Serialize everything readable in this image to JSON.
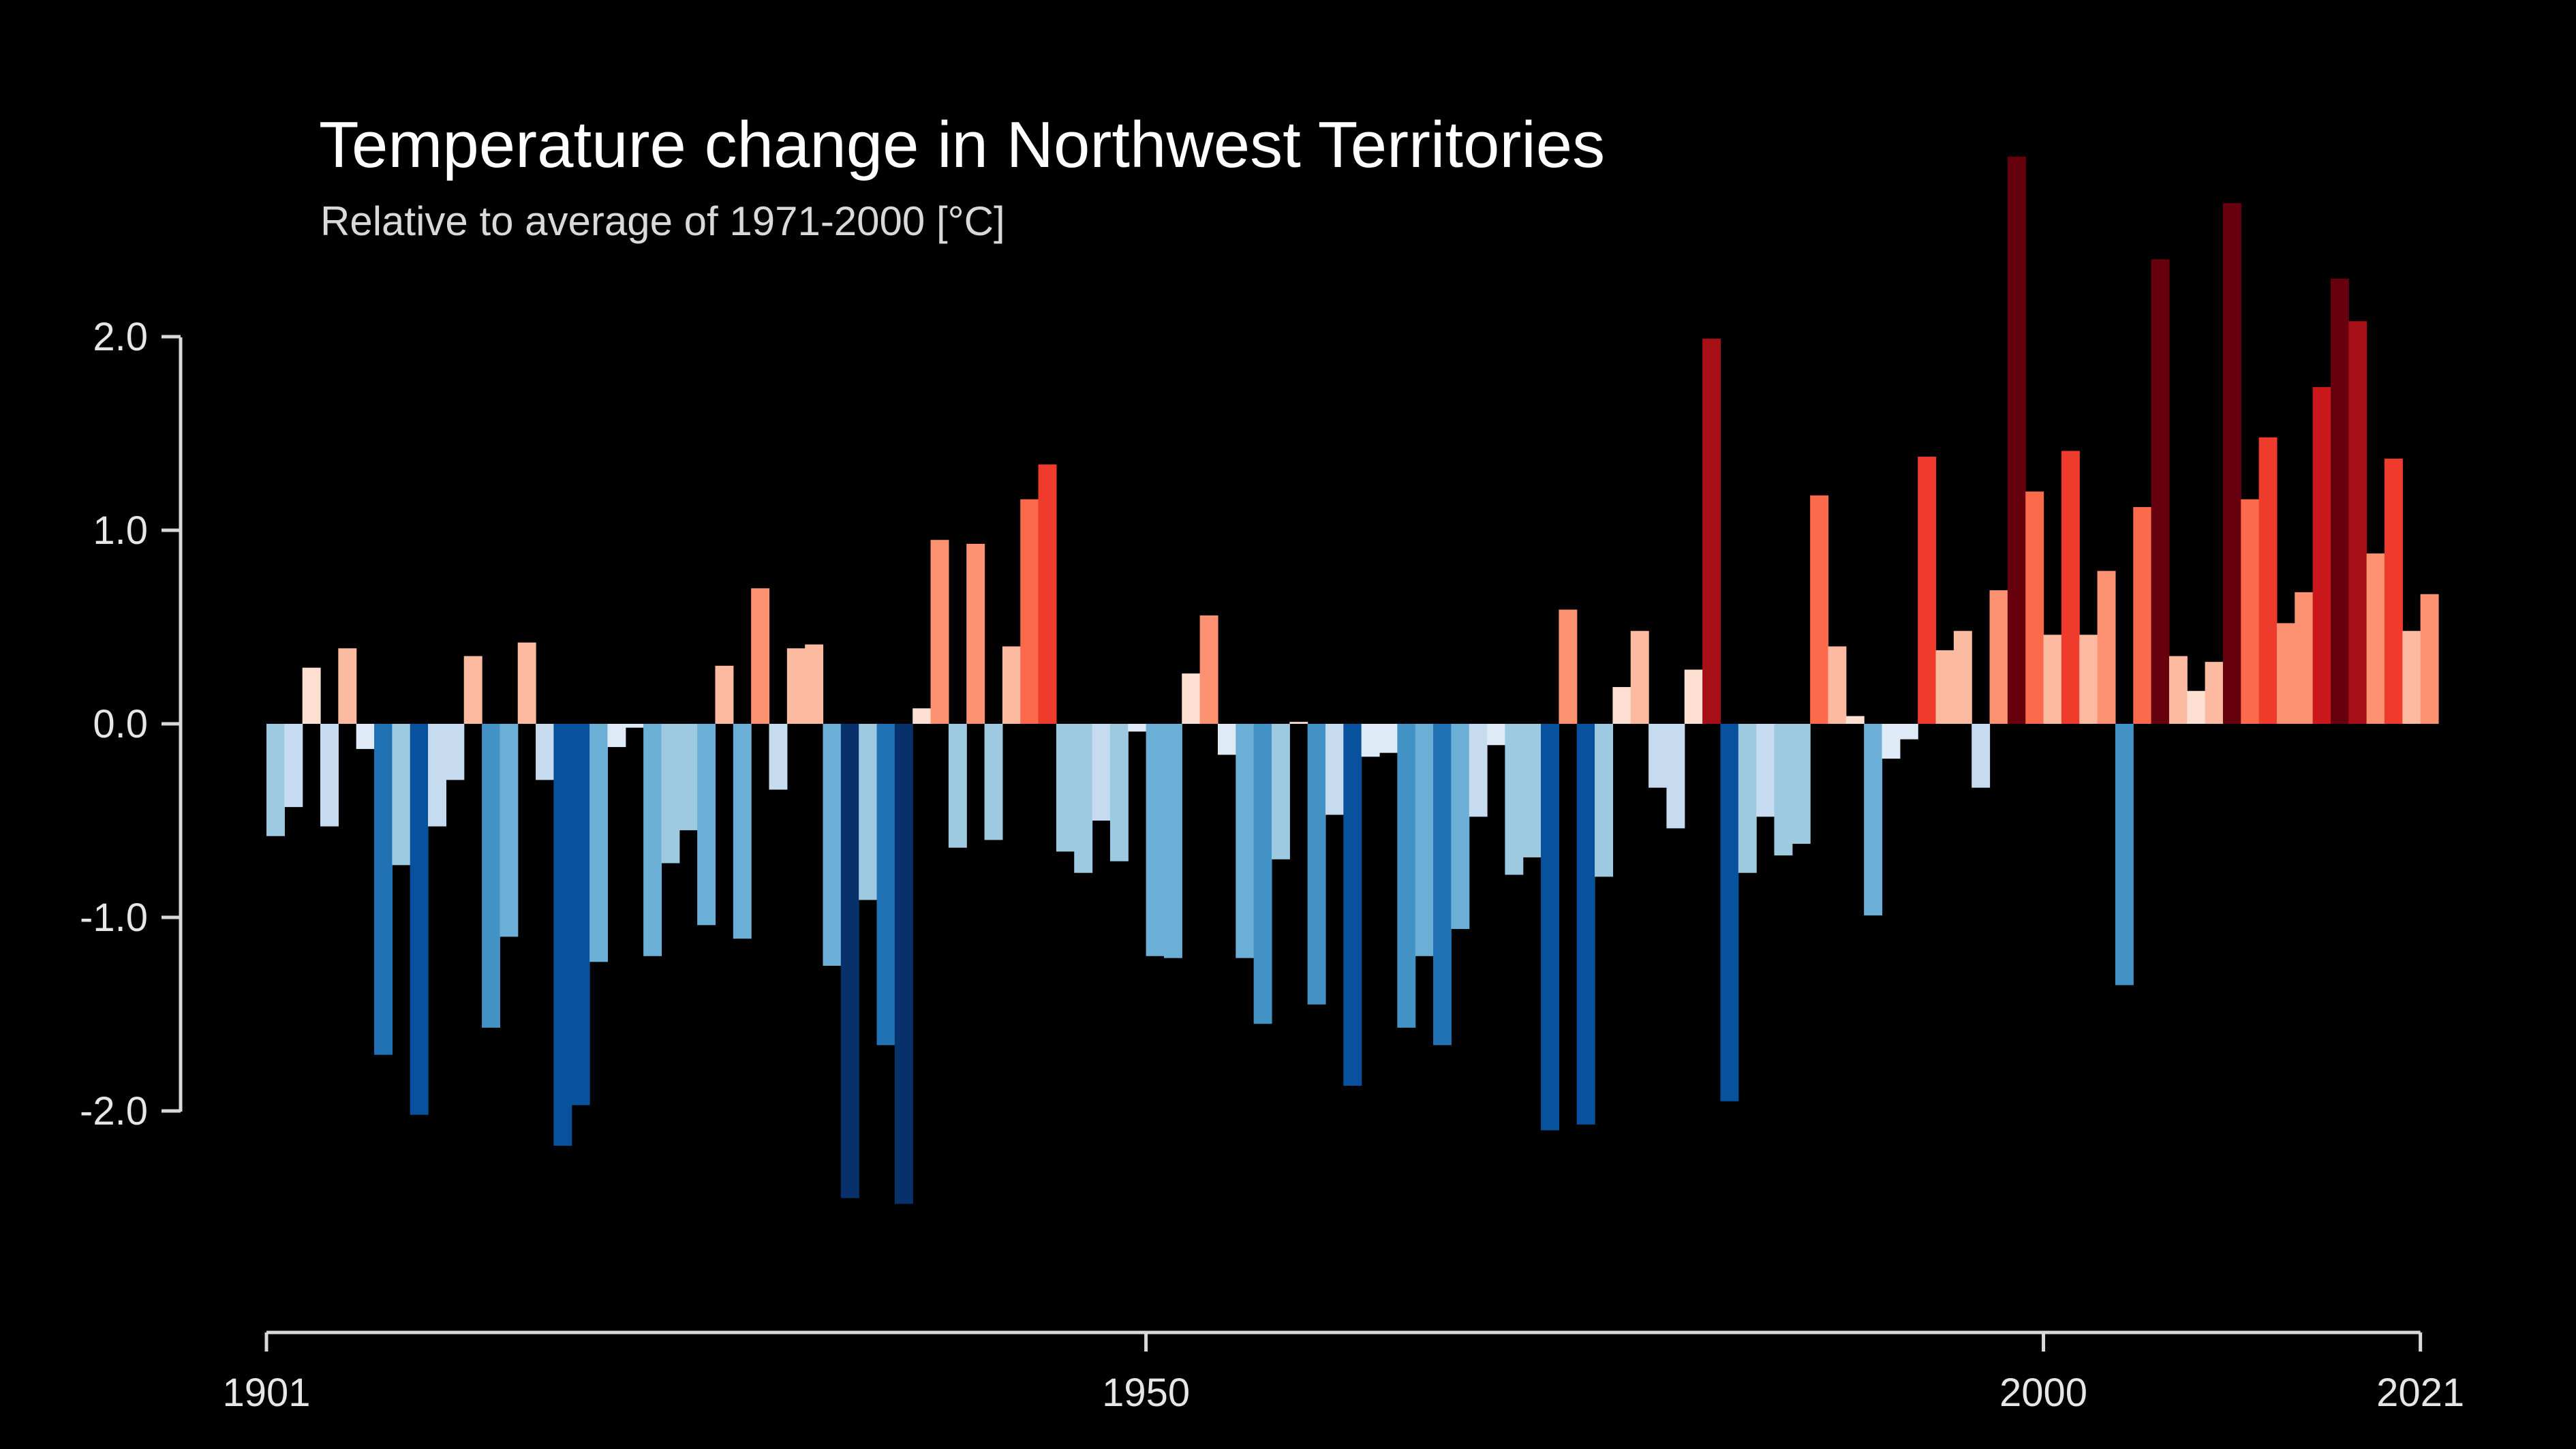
{
  "chart_data": {
    "type": "bar",
    "title": "Temperature change in Northwest Territories",
    "subtitle": "Relative to average of 1971-2000  [°C]",
    "xlabel": "",
    "ylabel": "",
    "x_start": 1901,
    "x_end": 2021,
    "xlim": [
      1901,
      2021
    ],
    "ylim": [
      -3.1,
      3.0
    ],
    "y_ticks": [
      2.0,
      1.0,
      0.0,
      -1.0,
      -2.0
    ],
    "y_tick_labels": [
      "2.0",
      "1.0",
      "0.0",
      "-1.0",
      "-2.0"
    ],
    "x_ticks": [
      1901,
      1950,
      2000,
      2021
    ],
    "x_tick_labels": [
      "1901",
      "1950",
      "2000",
      "2021"
    ],
    "grid": false,
    "legend": "none",
    "color_scale": {
      "negative": [
        "#08306b",
        "#08519c",
        "#2171b5",
        "#4292c6",
        "#6baed6",
        "#9ecae1",
        "#c6dbef",
        "#deebf7"
      ],
      "positive": [
        "#fee0d2",
        "#fcbba1",
        "#fc9272",
        "#fb6a4a",
        "#ef3b2c",
        "#cb181d",
        "#a50f15",
        "#67000d"
      ]
    },
    "values": [
      -0.58,
      -0.43,
      0.29,
      -0.53,
      0.39,
      -0.13,
      -1.71,
      -0.73,
      -2.02,
      -0.53,
      -0.29,
      0.35,
      -1.57,
      -1.1,
      0.42,
      -0.29,
      -2.18,
      -1.97,
      -1.23,
      -0.12,
      -0.02,
      -1.2,
      -0.72,
      -0.55,
      -1.04,
      0.3,
      -1.11,
      0.7,
      -0.34,
      0.39,
      0.41,
      -1.25,
      -2.45,
      -0.91,
      -1.66,
      -2.48,
      0.08,
      0.95,
      -0.64,
      0.93,
      -0.6,
      0.4,
      1.16,
      1.34,
      -0.66,
      -0.77,
      -0.5,
      -0.71,
      -0.04,
      -1.2,
      -1.21,
      0.26,
      0.56,
      -0.16,
      -1.21,
      -1.55,
      -0.7,
      0.01,
      -1.45,
      -0.47,
      -1.87,
      -0.17,
      -0.15,
      -1.57,
      -1.2,
      -1.66,
      -1.06,
      -0.48,
      -0.11,
      -0.78,
      -0.69,
      -2.1,
      0.59,
      -2.07,
      -0.79,
      0.19,
      0.48,
      -0.33,
      -0.54,
      0.28,
      1.99,
      -1.95,
      -0.77,
      -0.48,
      -0.68,
      -0.62,
      1.18,
      0.4,
      0.04,
      -0.99,
      -0.18,
      -0.08,
      1.38,
      0.38,
      0.48,
      -0.33,
      0.69,
      2.93,
      1.2,
      0.46,
      1.41,
      0.46,
      0.79,
      -1.35,
      1.12,
      2.4,
      0.35,
      0.17,
      0.32,
      2.69,
      1.16,
      1.48,
      0.52,
      0.68,
      1.74,
      2.3,
      2.08,
      0.88,
      1.37,
      0.48,
      0.67
    ]
  }
}
